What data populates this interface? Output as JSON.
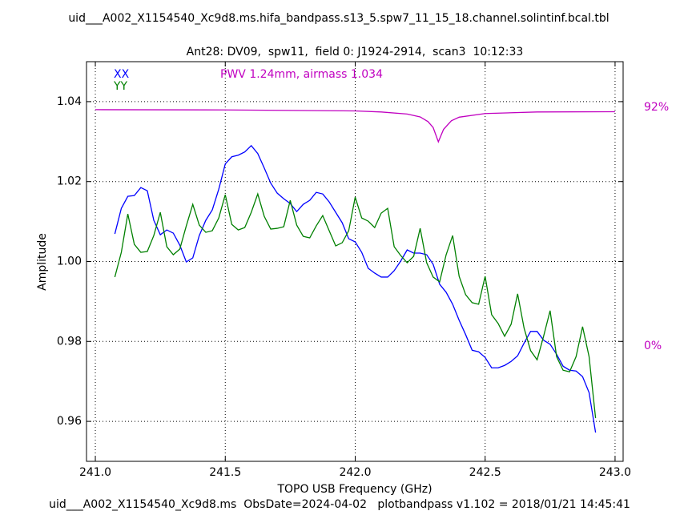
{
  "chart_data": {
    "type": "line",
    "title": "uid___A002_X1154540_Xc9d8.ms.hifa_bandpass.s13_5.spw7_11_15_18.channel.solintinf.bcal.tbl",
    "subtitle": "Ant28: DV09,  spw11,  field 0: J1924-2914,  scan3  10:12:33",
    "annotation": "PWV 1.24mm, airmass 1.034",
    "footer": "uid___A002_X1154540_Xc9d8.ms  ObsDate=2024-04-02   plotbandpass v1.102 = 2018/01/21 14:45:41",
    "xlabel": "TOPO USB Frequency (GHz)",
    "ylabel": "Amplitude",
    "xlim": [
      240.966,
      243.031
    ],
    "ylim": [
      0.95,
      1.05
    ],
    "y2lim": [
      -44.5,
      109.6
    ],
    "xticks": [
      {
        "value": 241,
        "label": "241.0"
      },
      241.5,
      {
        "value": 242,
        "label": "242.0"
      },
      242.5,
      {
        "value": 243,
        "label": "243.0"
      }
    ],
    "yticks": [
      0.96,
      0.98,
      {
        "value": 1,
        "label": "1.00"
      },
      1.02,
      1.04
    ],
    "y2ticks": [
      {
        "value": 0,
        "label": "0%"
      },
      {
        "value": 92,
        "label": "92%"
      }
    ],
    "y2color": "#c000c0",
    "grid": true,
    "x": [
      241.075,
      241.1,
      241.125,
      241.15,
      241.175,
      241.2,
      241.225,
      241.25,
      241.275,
      241.3,
      241.325,
      241.35,
      241.375,
      241.4,
      241.425,
      241.45,
      241.475,
      241.5,
      241.525,
      241.55,
      241.575,
      241.6,
      241.625,
      241.65,
      241.675,
      241.7,
      241.725,
      241.75,
      241.775,
      241.8,
      241.825,
      241.85,
      241.875,
      241.9,
      241.925,
      241.95,
      241.975,
      242.0,
      242.025,
      242.05,
      242.075,
      242.1,
      242.125,
      242.15,
      242.175,
      242.2,
      242.225,
      242.25,
      242.275,
      242.3,
      242.325,
      242.35,
      242.375,
      242.4,
      242.425,
      242.45,
      242.475,
      242.5,
      242.525,
      242.55,
      242.575,
      242.6,
      242.625,
      242.65,
      242.675,
      242.7,
      242.725,
      242.75,
      242.775,
      242.8,
      242.825,
      242.85,
      242.875,
      242.9,
      242.925
    ],
    "series": [
      {
        "name": "XX",
        "color": "#0000ff",
        "values": [
          1.0069,
          1.0133,
          1.0163,
          1.0165,
          1.0185,
          1.0177,
          1.0103,
          1.0067,
          1.0079,
          1.0071,
          1.0041,
          0.9999,
          1.0009,
          1.0065,
          1.0103,
          1.0129,
          1.0181,
          1.0244,
          1.0262,
          1.0266,
          1.0274,
          1.029,
          1.027,
          1.0234,
          1.0196,
          1.0171,
          1.0157,
          1.0145,
          1.0125,
          1.0143,
          1.0153,
          1.0173,
          1.0169,
          1.0149,
          1.0123,
          1.0097,
          1.0057,
          1.0049,
          1.0023,
          0.9983,
          0.9971,
          0.9961,
          0.9961,
          0.9977,
          1.0001,
          1.0029,
          1.0021,
          1.0021,
          1.0017,
          0.9993,
          0.9943,
          0.9923,
          0.9893,
          0.9853,
          0.9817,
          0.9778,
          0.9774,
          0.976,
          0.9734,
          0.9734,
          0.974,
          0.975,
          0.9764,
          0.9796,
          0.9825,
          0.9825,
          0.9803,
          0.9793,
          0.9768,
          0.9738,
          0.9728,
          0.9726,
          0.9712,
          0.9672,
          0.9572
        ]
      },
      {
        "name": "YY",
        "color": "#008000",
        "values": [
          0.9961,
          1.0023,
          1.0119,
          1.0043,
          1.0023,
          1.0025,
          1.0065,
          1.0123,
          1.0037,
          1.0017,
          1.0031,
          1.0089,
          1.0143,
          1.0091,
          1.0073,
          1.0077,
          1.0109,
          1.0167,
          1.0093,
          1.0079,
          1.0085,
          1.0123,
          1.0169,
          1.0113,
          1.0081,
          1.0083,
          1.0087,
          1.0153,
          1.0091,
          1.0063,
          1.0059,
          1.0089,
          1.0115,
          1.0077,
          1.0039,
          1.0047,
          1.0077,
          1.0161,
          1.0109,
          1.0101,
          1.0085,
          1.0121,
          1.0133,
          1.0037,
          1.0015,
          0.9997,
          1.0013,
          1.0083,
          0.9997,
          0.9961,
          0.9949,
          1.0017,
          1.0065,
          0.9963,
          0.9917,
          0.9897,
          0.9893,
          0.9963,
          0.9867,
          0.9845,
          0.9813,
          0.9843,
          0.9919,
          0.9833,
          0.9777,
          0.9754,
          0.9813,
          0.9877,
          0.9762,
          0.9728,
          0.9724,
          0.9762,
          0.9837,
          0.9762,
          0.9608
        ]
      },
      {
        "color": "#c000c0",
        "axis": "y2",
        "x": [
          241.0,
          241.5,
          242.0,
          242.1,
          242.2,
          242.25,
          242.28,
          242.3,
          242.32,
          242.34,
          242.37,
          242.4,
          242.5,
          242.7,
          243.0
        ],
        "values": [
          91.1,
          91.0,
          90.6,
          90.2,
          89.4,
          88.3,
          86.5,
          84.2,
          78.7,
          83.5,
          86.8,
          88.2,
          89.6,
          90.2,
          90.3
        ]
      }
    ]
  }
}
